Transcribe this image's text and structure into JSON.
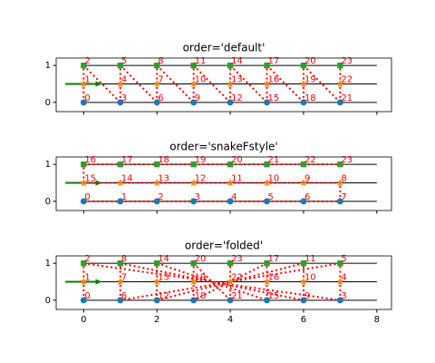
{
  "chart_data": [
    {
      "type": "scatter",
      "title": "order='default'",
      "xlim": [
        -0.75,
        8.4
      ],
      "ylim": [
        -0.25,
        1.2
      ],
      "xticks": [
        0,
        2,
        4,
        6,
        8
      ],
      "yticks": [
        0,
        1
      ],
      "show_xtick_labels": false,
      "hlines": {
        "values": [
          0,
          0.5,
          1
        ],
        "xmin": 0,
        "xmax": 8,
        "color": "#000000"
      },
      "arrow": {
        "x": [
          -0.5,
          0.5
        ],
        "y": 0.5,
        "color": "#008000"
      },
      "path_color": "#ff0000",
      "series": [
        {
          "marker": "circle",
          "color": "#1f77b4",
          "x": [
            0,
            1,
            2,
            3,
            4,
            5,
            6,
            7
          ],
          "values": [
            0,
            0,
            0,
            0,
            0,
            0,
            0,
            0
          ],
          "labels": [
            0,
            3,
            6,
            9,
            12,
            15,
            18,
            21
          ]
        },
        {
          "marker": "star",
          "color": "#ff7f0e",
          "x": [
            0,
            1,
            2,
            3,
            4,
            5,
            6,
            7
          ],
          "values": [
            0.5,
            0.5,
            0.5,
            0.5,
            0.5,
            0.5,
            0.5,
            0.5
          ],
          "labels": [
            1,
            4,
            7,
            10,
            13,
            16,
            19,
            22
          ]
        },
        {
          "marker": "square",
          "color": "#2ca02c",
          "x": [
            0,
            1,
            2,
            3,
            4,
            5,
            6,
            7
          ],
          "values": [
            1,
            1,
            1,
            1,
            1,
            1,
            1,
            1
          ],
          "labels": [
            2,
            5,
            8,
            11,
            14,
            17,
            20,
            23
          ]
        }
      ]
    },
    {
      "type": "scatter",
      "title": "order='snakeFstyle'",
      "xlim": [
        -0.75,
        8.4
      ],
      "ylim": [
        -0.25,
        1.2
      ],
      "xticks": [
        0,
        2,
        4,
        6,
        8
      ],
      "yticks": [
        0,
        1
      ],
      "show_xtick_labels": false,
      "hlines": {
        "values": [
          0,
          0.5,
          1
        ],
        "xmin": 0,
        "xmax": 8,
        "color": "#000000"
      },
      "arrow": {
        "x": [
          -0.5,
          0.5
        ],
        "y": 0.5,
        "color": "#008000"
      },
      "path_color": "#ff0000",
      "series": [
        {
          "marker": "circle",
          "color": "#1f77b4",
          "x": [
            0,
            1,
            2,
            3,
            4,
            5,
            6,
            7
          ],
          "values": [
            0,
            0,
            0,
            0,
            0,
            0,
            0,
            0
          ],
          "labels": [
            0,
            1,
            2,
            3,
            4,
            5,
            6,
            7
          ]
        },
        {
          "marker": "star",
          "color": "#ff7f0e",
          "x": [
            0,
            1,
            2,
            3,
            4,
            5,
            6,
            7
          ],
          "values": [
            0.5,
            0.5,
            0.5,
            0.5,
            0.5,
            0.5,
            0.5,
            0.5
          ],
          "labels": [
            15,
            14,
            13,
            12,
            11,
            10,
            9,
            8
          ]
        },
        {
          "marker": "square",
          "color": "#2ca02c",
          "x": [
            0,
            1,
            2,
            3,
            4,
            5,
            6,
            7
          ],
          "values": [
            1,
            1,
            1,
            1,
            1,
            1,
            1,
            1
          ],
          "labels": [
            16,
            17,
            18,
            19,
            20,
            21,
            22,
            23
          ]
        }
      ]
    },
    {
      "type": "scatter",
      "title": "order='folded'",
      "xlim": [
        -0.75,
        8.4
      ],
      "ylim": [
        -0.25,
        1.2
      ],
      "xticks": [
        0,
        2,
        4,
        6,
        8
      ],
      "yticks": [
        0,
        1
      ],
      "show_xtick_labels": true,
      "hlines": {
        "values": [
          0,
          0.5,
          1
        ],
        "xmin": 0,
        "xmax": 8,
        "color": "#000000"
      },
      "arrow": {
        "x": [
          -0.5,
          0.5
        ],
        "y": 0.5,
        "color": "#008000"
      },
      "path_color": "#ff0000",
      "series": [
        {
          "marker": "circle",
          "color": "#1f77b4",
          "x": [
            0,
            1,
            2,
            3,
            4,
            5,
            6,
            7
          ],
          "values": [
            0,
            0,
            0,
            0,
            0,
            0,
            0,
            0
          ],
          "labels": [
            0,
            6,
            12,
            18,
            21,
            15,
            9,
            3
          ]
        },
        {
          "marker": "star",
          "color": "#ff7f0e",
          "x": [
            0,
            1,
            2,
            3,
            4,
            5,
            6,
            7
          ],
          "values": [
            0.5,
            0.5,
            0.5,
            0.5,
            0.5,
            0.5,
            0.5,
            0.5
          ],
          "labels": [
            1,
            7,
            13,
            19,
            22,
            16,
            10,
            4
          ]
        },
        {
          "marker": "square",
          "color": "#2ca02c",
          "x": [
            0,
            1,
            2,
            3,
            4,
            5,
            6,
            7
          ],
          "values": [
            1,
            1,
            1,
            1,
            1,
            1,
            1,
            1
          ],
          "labels": [
            2,
            8,
            14,
            20,
            23,
            17,
            11,
            5
          ]
        }
      ]
    }
  ]
}
